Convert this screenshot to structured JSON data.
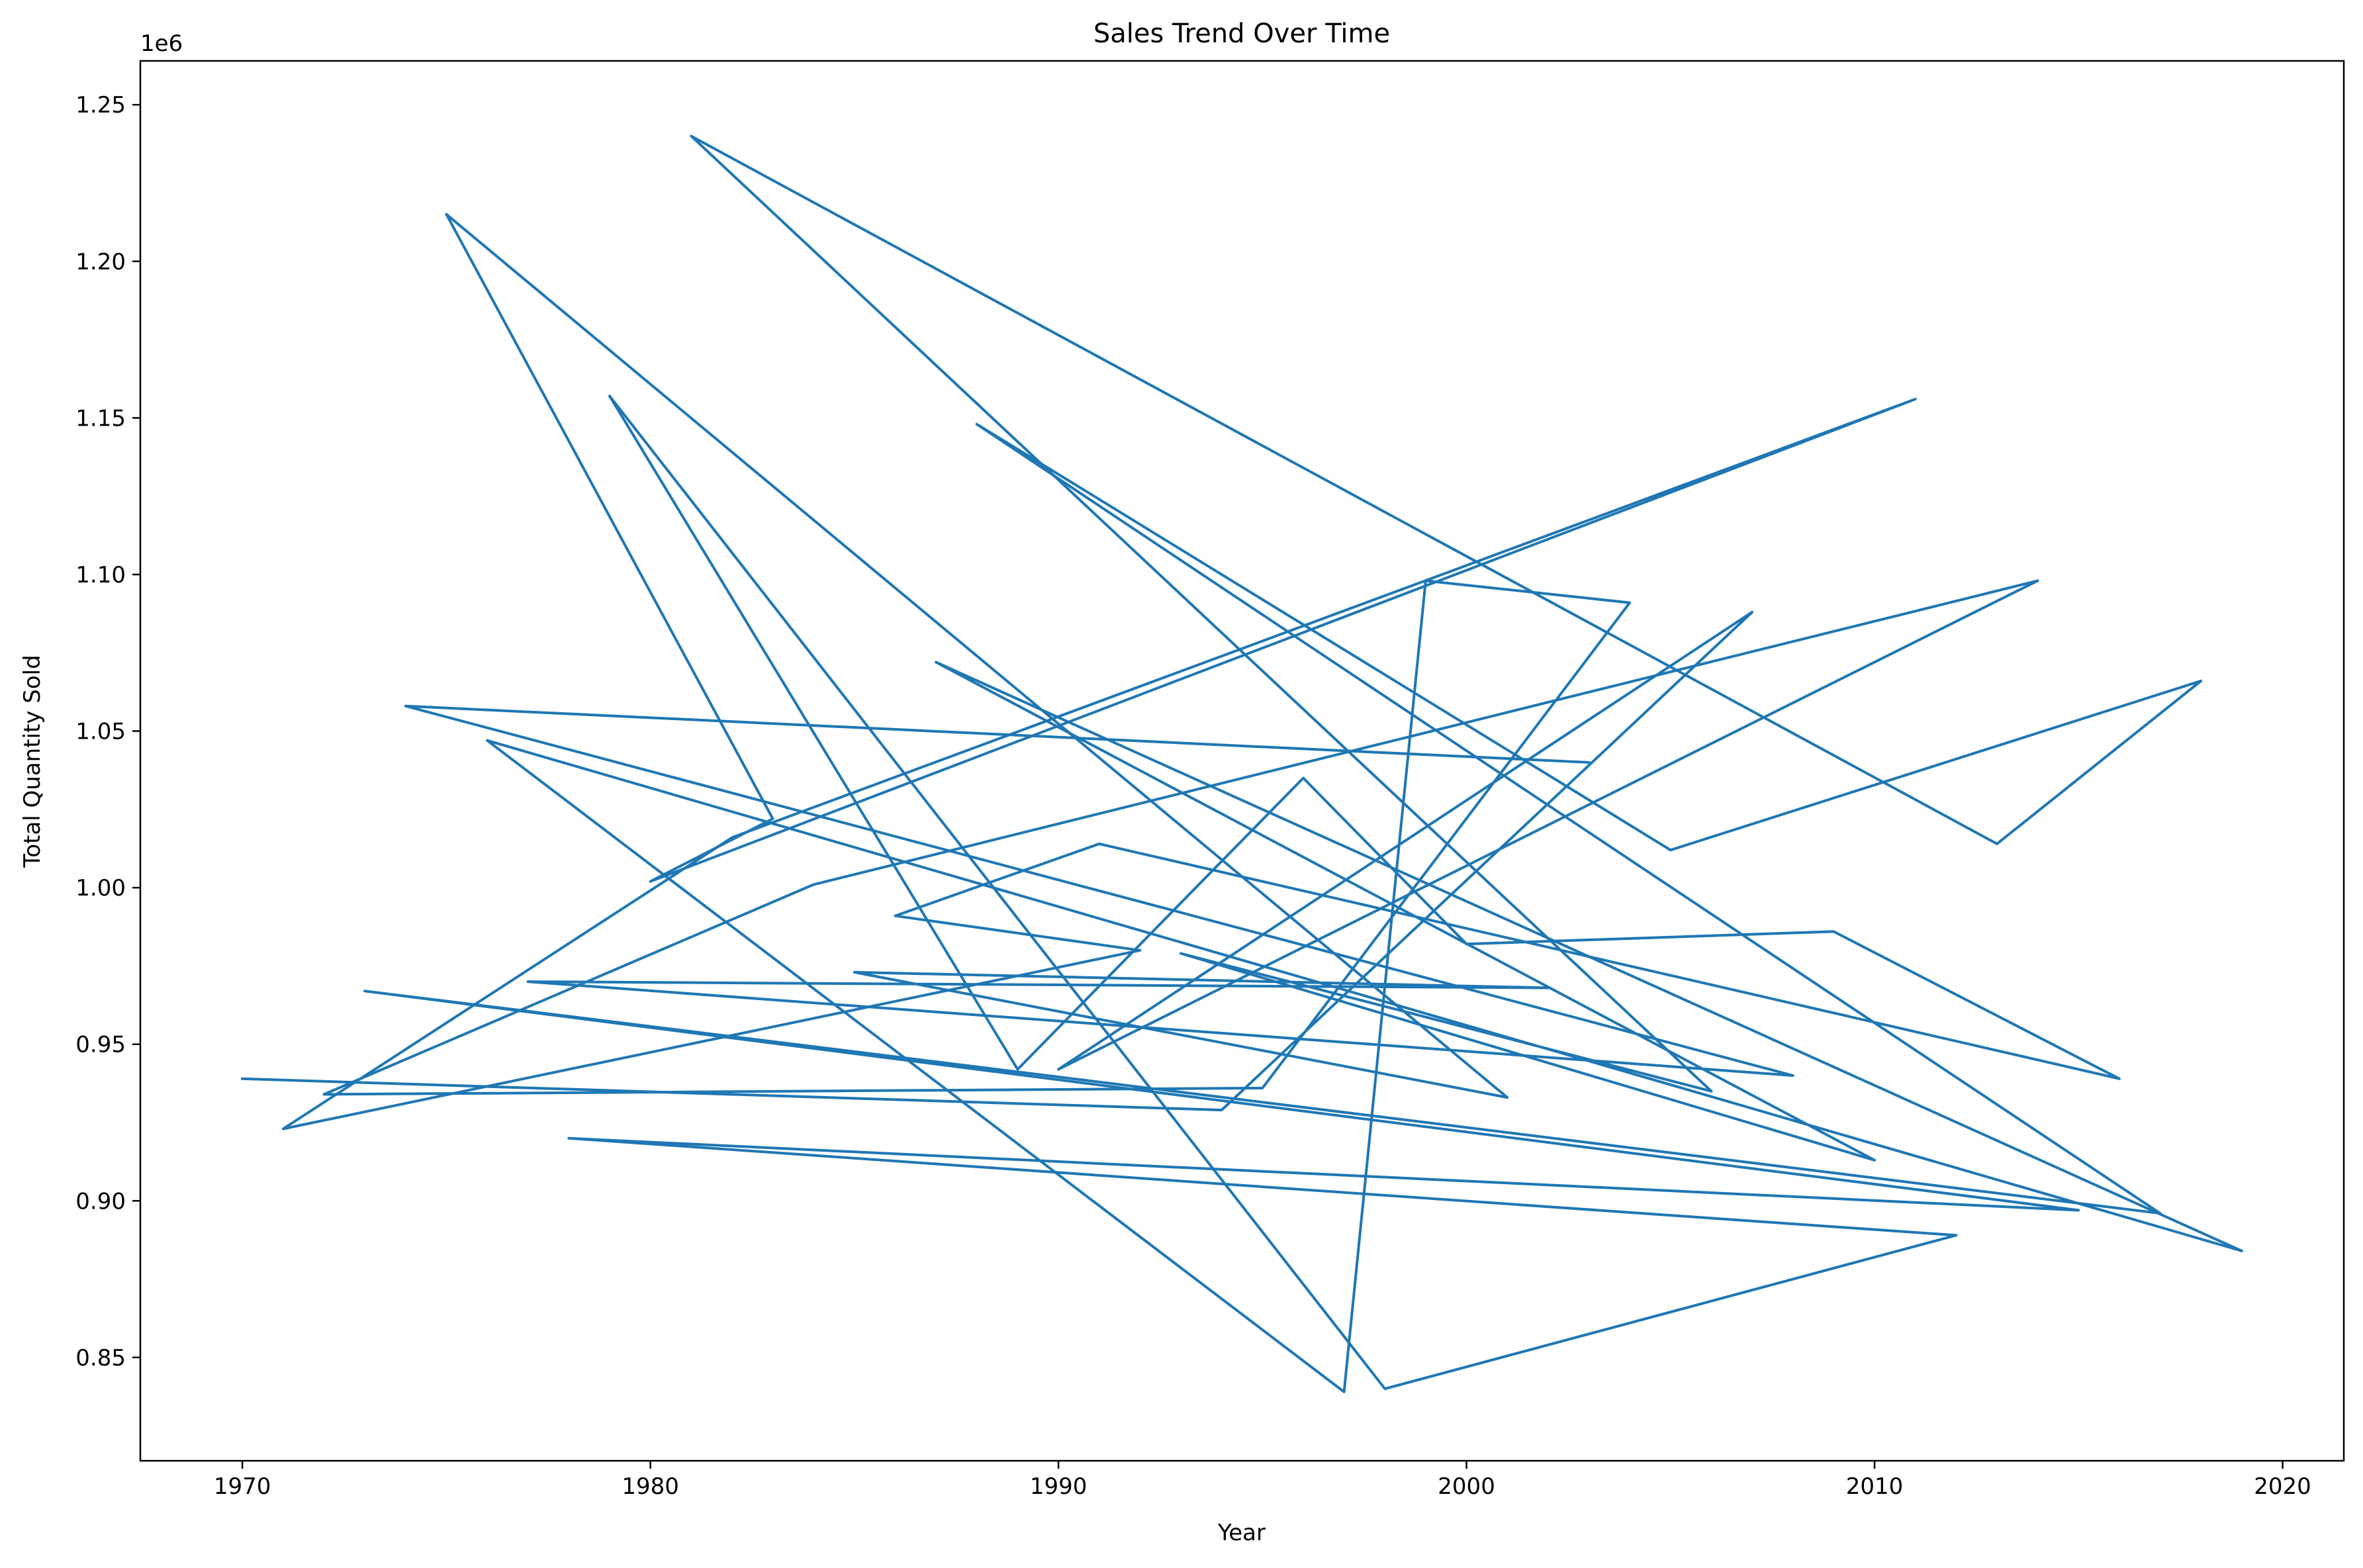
{
  "chart_data": {
    "type": "line",
    "title": "Sales Trend Over Time",
    "xlabel": "Year",
    "ylabel": "Total Quantity Sold",
    "y_offset_label": "1e6",
    "xlim": [
      1967.5,
      2021.5
    ],
    "ylim": [
      817000,
      1264000
    ],
    "x_ticks": [
      1970,
      1980,
      1990,
      2000,
      2010,
      2020
    ],
    "x_tick_labels": [
      "1970",
      "1980",
      "1990",
      "2000",
      "2010",
      "2020"
    ],
    "y_ticks": [
      850000,
      900000,
      950000,
      1000000,
      1050000,
      1100000,
      1150000,
      1200000,
      1250000
    ],
    "y_tick_labels": [
      "0.85",
      "0.90",
      "0.95",
      "1.00",
      "1.05",
      "1.10",
      "1.15",
      "1.20",
      "1.25"
    ],
    "grid": false,
    "series": [
      {
        "color": "#1f77b4",
        "x": [
          2003,
          1974,
          2008,
          1977,
          2002,
          1985,
          2001,
          1975,
          1983,
          1980,
          2011,
          1982,
          1971,
          1992,
          1986,
          1991,
          2016,
          2009,
          2000,
          1996,
          1989,
          1979,
          1998,
          2012,
          1978,
          2015,
          1973,
          2017,
          1988,
          2005,
          2018,
          2013,
          1981,
          2006,
          1993,
          2010,
          1987,
          2019,
          1976,
          1997,
          1999,
          2004,
          1995,
          1972,
          1984,
          2014,
          1990,
          2007,
          1994,
          1970
        ],
        "y": [
          1040000,
          1058000,
          940000,
          970000,
          968000,
          973000,
          933000,
          1215000,
          1022000,
          1002000,
          1156000,
          1016000,
          923000,
          980000,
          991000,
          1014000,
          939000,
          986000,
          982000,
          1035000,
          942000,
          1157000,
          840000,
          889000,
          920000,
          897000,
          967000,
          896000,
          1148000,
          1012000,
          1066000,
          1014000,
          1240000,
          935000,
          979000,
          913000,
          1072000,
          884000,
          1047000,
          839000,
          1098000,
          1091000,
          936000,
          934000,
          1001000,
          1098000,
          942000,
          1088000,
          929000,
          939000
        ]
      }
    ]
  }
}
